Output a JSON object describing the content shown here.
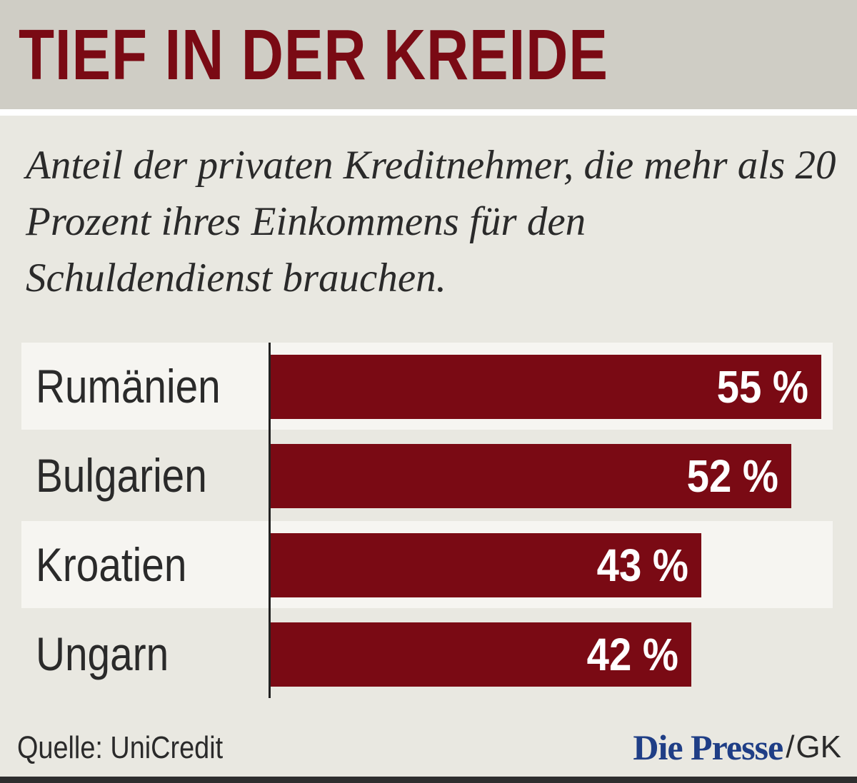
{
  "title": "TIEF IN DER KREIDE",
  "subtitle": "Anteil der privaten Kreditnehmer, die mehr als 20 Prozent ihres Einkommens für den Schuldendienst brauchen.",
  "source": "Quelle: UniCredit",
  "brand": {
    "name": "Die Presse",
    "separator": "/",
    "credit": "GK"
  },
  "colors": {
    "bar": "#7a0a14",
    "title": "#7a0a14",
    "header_bg": "#cfcdc5",
    "background": "#e9e8e1",
    "brand": "#1f3e86"
  },
  "chart_data": {
    "type": "bar",
    "orientation": "horizontal",
    "title": "TIEF IN DER KREIDE",
    "categories": [
      "Rumänien",
      "Bulgarien",
      "Kroatien",
      "Ungarn"
    ],
    "values": [
      55,
      52,
      43,
      42
    ],
    "value_labels": [
      "55 %",
      "52 %",
      "43 %",
      "42 %"
    ],
    "unit": "%",
    "xlim": [
      0,
      55
    ],
    "grid": false,
    "legend": "none"
  }
}
